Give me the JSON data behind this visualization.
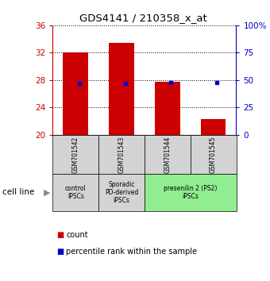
{
  "title": "GDS4141 / 210358_x_at",
  "samples": [
    "GSM701542",
    "GSM701543",
    "GSM701544",
    "GSM701545"
  ],
  "count_values": [
    32.1,
    33.4,
    27.8,
    22.3
  ],
  "percentile_values": [
    47,
    47,
    48,
    48
  ],
  "ylim_left": [
    20,
    36
  ],
  "ylim_right": [
    0,
    100
  ],
  "yticks_left": [
    20,
    24,
    28,
    32,
    36
  ],
  "yticks_right": [
    0,
    25,
    50,
    75,
    100
  ],
  "bar_color": "#cc0000",
  "dot_color": "#0000cc",
  "left_tick_color": "#cc0000",
  "right_tick_color": "#0000cc",
  "bar_width": 0.55,
  "groups": [
    {
      "label": "control\nIPSCs",
      "start": 0,
      "end": 1,
      "color": "#d3d3d3"
    },
    {
      "label": "Sporadic\nPD-derived\niPSCs",
      "start": 1,
      "end": 2,
      "color": "#d3d3d3"
    },
    {
      "label": "presenilin 2 (PS2)\niPSCs",
      "start": 2,
      "end": 4,
      "color": "#90ee90"
    }
  ],
  "legend_count_label": "count",
  "legend_pct_label": "percentile rank within the sample",
  "cell_line_label": "cell line"
}
